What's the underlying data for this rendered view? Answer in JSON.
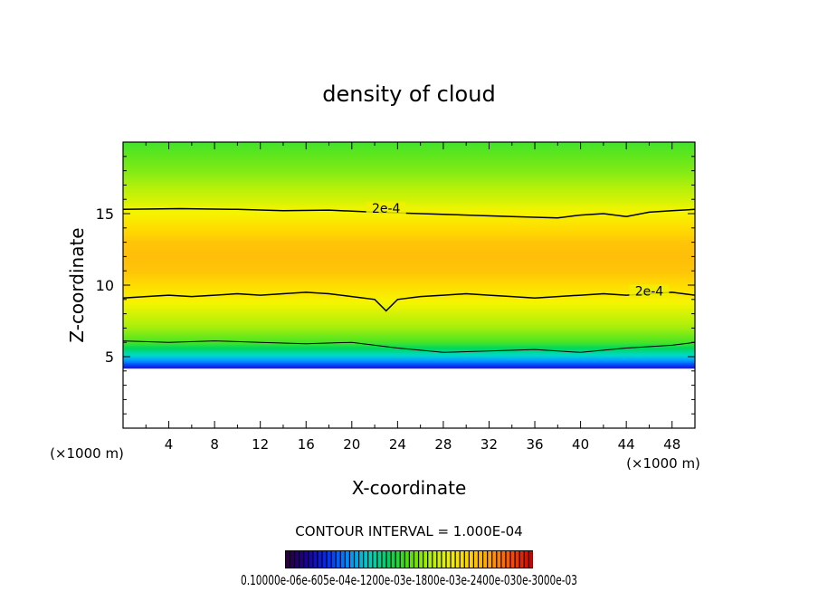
{
  "chart_data": {
    "type": "heatmap",
    "title": "density of cloud",
    "xlabel": "X-coordinate",
    "ylabel": "Z-coordinate",
    "x_unit": "(×1000 m)",
    "z_unit": "(×1000 m)",
    "xlim": [
      0,
      50
    ],
    "ylim": [
      0,
      20
    ],
    "x_ticks": [
      "4",
      "8",
      "12",
      "16",
      "20",
      "24",
      "28",
      "32",
      "36",
      "40",
      "44",
      "48"
    ],
    "y_ticks": [
      "5",
      "10",
      "15"
    ],
    "contour_interval_text": "CONTOUR INTERVAL = 1.000E-04",
    "contour_labels": [
      {
        "text": "2e-4",
        "x": 23,
        "z": 15.2
      },
      {
        "text": "2e-4",
        "x": 46,
        "z": 9.4
      }
    ],
    "contours": [
      {
        "level": 0.0002,
        "x": [
          0,
          5,
          10,
          14,
          18,
          22,
          26,
          30,
          34,
          38,
          40,
          42,
          44,
          46,
          48,
          50
        ],
        "z": [
          15.3,
          15.35,
          15.3,
          15.2,
          15.25,
          15.1,
          15.0,
          14.9,
          14.8,
          14.7,
          14.9,
          15.0,
          14.8,
          15.1,
          15.2,
          15.3
        ]
      },
      {
        "level": 0.0002,
        "x": [
          0,
          2,
          4,
          6,
          8,
          10,
          12,
          14,
          16,
          18,
          20,
          22,
          23,
          24,
          26,
          28,
          30,
          32,
          34,
          36,
          38,
          40,
          42,
          44,
          46,
          48,
          50
        ],
        "z": [
          9.1,
          9.2,
          9.3,
          9.2,
          9.3,
          9.4,
          9.3,
          9.4,
          9.5,
          9.4,
          9.2,
          9.0,
          8.2,
          9.0,
          9.2,
          9.3,
          9.4,
          9.3,
          9.2,
          9.1,
          9.2,
          9.3,
          9.4,
          9.3,
          9.4,
          9.5,
          9.3
        ]
      },
      {
        "level": 0.0001,
        "x": [
          0,
          4,
          8,
          12,
          16,
          20,
          24,
          28,
          32,
          36,
          40,
          44,
          48,
          50
        ],
        "z": [
          6.1,
          6.0,
          6.1,
          6.0,
          5.9,
          6.0,
          5.6,
          5.3,
          5.4,
          5.5,
          5.3,
          5.6,
          5.8,
          6.0
        ]
      }
    ],
    "vertical_profile": {
      "z": [
        4.2,
        4.6,
        5.0,
        5.5,
        6.0,
        7.0,
        8.0,
        9.0,
        10.0,
        11.0,
        12.0,
        13.0,
        14.0,
        15.0,
        16.0,
        17.0,
        18.0,
        19.0,
        20.0
      ],
      "density": [
        1e-05,
        4e-05,
        7e-05,
        0.0001,
        0.00013,
        0.00016,
        0.00018,
        0.0002,
        0.00022,
        0.00024,
        0.000245,
        0.00024,
        0.00022,
        0.0002,
        0.00018,
        0.000165,
        0.00015,
        0.00014,
        0.00013
      ]
    },
    "cloud_base_z": 4.2,
    "colorbar": {
      "tick_labels": [
        "0.1000e-05",
        "0.6000e-04",
        "0.1200e-03",
        "0.1800e-03",
        "0.2400e-03",
        "0.3000e-03"
      ],
      "label_text": "0.10000e-06e-605e-04e-1200e-03e-1800e-03e-2400e-030e-3000e-03",
      "colors": [
        "#2a0040",
        "#1a00a0",
        "#0030ff",
        "#0090ff",
        "#00d0c0",
        "#00d060",
        "#50e000",
        "#b0f000",
        "#f0f000",
        "#ffd000",
        "#ffa000",
        "#ff5000",
        "#d00000"
      ]
    },
    "colorscale": [
      {
        "v": 0.0,
        "c": "#5a0a8c"
      },
      {
        "v": 0.04,
        "c": "#1f14c8"
      },
      {
        "v": 0.12,
        "c": "#0046ff"
      },
      {
        "v": 0.22,
        "c": "#00a0ff"
      },
      {
        "v": 0.32,
        "c": "#00d8c8"
      },
      {
        "v": 0.44,
        "c": "#00d75a"
      },
      {
        "v": 0.56,
        "c": "#5ae61e"
      },
      {
        "v": 0.68,
        "c": "#b4f00a"
      },
      {
        "v": 0.8,
        "c": "#f5f500"
      },
      {
        "v": 0.9,
        "c": "#ffdc00"
      },
      {
        "v": 1.0,
        "c": "#ffbe0a"
      }
    ]
  }
}
